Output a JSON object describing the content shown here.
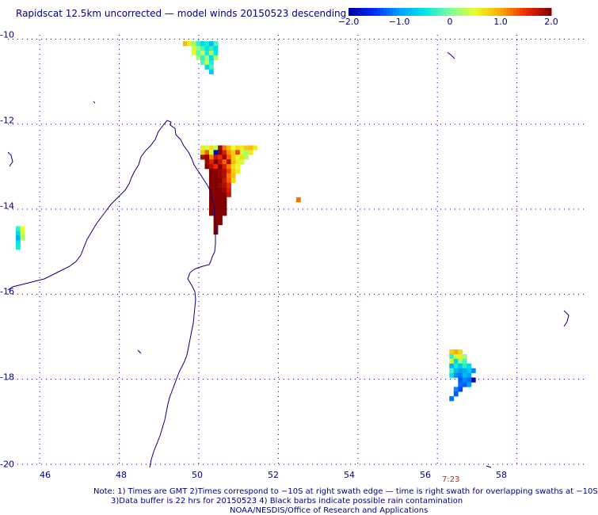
{
  "title": "Rapidscat 12.5km uncorrected — model winds 20150523 descending",
  "colorbar": {
    "ticks": [
      "−2.0",
      "−1.0",
      "0",
      "1.0",
      "2.0"
    ],
    "tick_values": [
      -2.0,
      -1.0,
      0,
      1.0,
      2.0
    ],
    "range": [
      -2.0,
      2.0
    ]
  },
  "axes": {
    "lat_labels": [
      "-10",
      "-12",
      "-14",
      "-16",
      "-18",
      "-20"
    ],
    "lat_values": [
      -10,
      -12,
      -14,
      -16,
      -18,
      -20
    ],
    "lon_labels": [
      "46",
      "48",
      "50",
      "52",
      "54",
      "56",
      "58"
    ],
    "lon_values": [
      46,
      48,
      50,
      52,
      54,
      56,
      58
    ],
    "lon_range": [
      45.2,
      59.7
    ],
    "lat_range": [
      -20,
      -9.9
    ]
  },
  "time_label": "7:23",
  "notes": {
    "line1": "Note: 1) Times are GMT 2)Times correspond to −10S at right swath edge — time is right swath for overlapping swaths at −10S",
    "line2": "3)Data buffer is 22 hrs for 20150523 4) Black barbs indicate possible rain contamination",
    "line3": "NOAA/NESDIS/Office of Research and Applications"
  },
  "colors": {
    "text": "#000080",
    "coastline": "#000080",
    "grid": "#000080",
    "time_label": "#cc2222"
  },
  "cell_size_deg": 0.11,
  "data_cells": [
    {
      "lon": 49.6,
      "lat": -10.05,
      "v": 0.9
    },
    {
      "lon": 49.71,
      "lat": -10.05,
      "v": 0.6
    },
    {
      "lon": 49.82,
      "lat": -10.05,
      "v": 0.2
    },
    {
      "lon": 49.93,
      "lat": -10.05,
      "v": -0.3
    },
    {
      "lon": 50.04,
      "lat": -10.05,
      "v": -0.6
    },
    {
      "lon": 50.15,
      "lat": -10.05,
      "v": -0.4
    },
    {
      "lon": 50.26,
      "lat": -10.05,
      "v": -0.8
    },
    {
      "lon": 50.37,
      "lat": -10.05,
      "v": -0.2
    },
    {
      "lon": 49.82,
      "lat": -10.16,
      "v": 0.4
    },
    {
      "lon": 49.93,
      "lat": -10.16,
      "v": 0.1
    },
    {
      "lon": 50.04,
      "lat": -10.16,
      "v": -0.2
    },
    {
      "lon": 50.15,
      "lat": -10.16,
      "v": -0.5
    },
    {
      "lon": 50.26,
      "lat": -10.16,
      "v": -0.3
    },
    {
      "lon": 50.37,
      "lat": -10.16,
      "v": -0.6
    },
    {
      "lon": 49.82,
      "lat": -10.27,
      "v": 0.5
    },
    {
      "lon": 49.93,
      "lat": -10.27,
      "v": -0.1
    },
    {
      "lon": 50.04,
      "lat": -10.27,
      "v": 0.3
    },
    {
      "lon": 50.15,
      "lat": -10.27,
      "v": -0.4
    },
    {
      "lon": 50.26,
      "lat": -10.27,
      "v": 0.2
    },
    {
      "lon": 50.37,
      "lat": -10.27,
      "v": -0.5
    },
    {
      "lon": 49.93,
      "lat": -10.38,
      "v": 0.2
    },
    {
      "lon": 50.04,
      "lat": -10.38,
      "v": -0.3
    },
    {
      "lon": 50.15,
      "lat": -10.38,
      "v": 0.1
    },
    {
      "lon": 50.26,
      "lat": -10.38,
      "v": -0.6
    },
    {
      "lon": 50.37,
      "lat": -10.38,
      "v": 0.3
    },
    {
      "lon": 50.04,
      "lat": -10.49,
      "v": -0.2
    },
    {
      "lon": 50.15,
      "lat": -10.49,
      "v": 0.4
    },
    {
      "lon": 50.26,
      "lat": -10.49,
      "v": -0.4
    },
    {
      "lon": 50.15,
      "lat": -10.6,
      "v": -0.6
    },
    {
      "lon": 50.26,
      "lat": -10.6,
      "v": -0.2
    },
    {
      "lon": 50.26,
      "lat": -10.71,
      "v": -0.7
    },
    {
      "lon": 50.04,
      "lat": -12.5,
      "v": 0.6
    },
    {
      "lon": 50.15,
      "lat": -12.5,
      "v": 0.4
    },
    {
      "lon": 50.26,
      "lat": -12.5,
      "v": 0.7
    },
    {
      "lon": 50.37,
      "lat": -12.5,
      "v": 0.3
    },
    {
      "lon": 50.48,
      "lat": -12.5,
      "v": 1.9
    },
    {
      "lon": 50.59,
      "lat": -12.5,
      "v": 1.2
    },
    {
      "lon": 50.7,
      "lat": -12.5,
      "v": 0.9
    },
    {
      "lon": 50.81,
      "lat": -12.5,
      "v": 0.5
    },
    {
      "lon": 50.92,
      "lat": -12.5,
      "v": 0.7
    },
    {
      "lon": 51.03,
      "lat": -12.5,
      "v": 0.6
    },
    {
      "lon": 51.14,
      "lat": -12.5,
      "v": 0.8
    },
    {
      "lon": 51.25,
      "lat": -12.5,
      "v": 0.9
    },
    {
      "lon": 51.36,
      "lat": -12.5,
      "v": 0.6
    },
    {
      "lon": 50.04,
      "lat": -12.61,
      "v": 0.8
    },
    {
      "lon": 50.15,
      "lat": -12.61,
      "v": 1.3
    },
    {
      "lon": 50.26,
      "lat": -12.61,
      "v": 0.5
    },
    {
      "lon": 50.37,
      "lat": -12.61,
      "v": -1.9
    },
    {
      "lon": 50.48,
      "lat": -12.61,
      "v": 2.0
    },
    {
      "lon": 50.59,
      "lat": -12.61,
      "v": 1.6
    },
    {
      "lon": 50.7,
      "lat": -12.61,
      "v": 1.1
    },
    {
      "lon": 50.81,
      "lat": -12.61,
      "v": 0.8
    },
    {
      "lon": 50.92,
      "lat": -12.61,
      "v": 1.4
    },
    {
      "lon": 51.03,
      "lat": -12.61,
      "v": 0.4
    },
    {
      "lon": 51.14,
      "lat": -12.61,
      "v": 0.2
    },
    {
      "lon": 51.25,
      "lat": -12.61,
      "v": 0.6
    },
    {
      "lon": 50.04,
      "lat": -12.72,
      "v": 1.8
    },
    {
      "lon": 50.15,
      "lat": -12.72,
      "v": 2.0
    },
    {
      "lon": 50.26,
      "lat": -12.72,
      "v": 1.2
    },
    {
      "lon": 50.37,
      "lat": -12.72,
      "v": 1.7
    },
    {
      "lon": 50.48,
      "lat": -12.72,
      "v": 1.5
    },
    {
      "lon": 50.59,
      "lat": -12.72,
      "v": 1.9
    },
    {
      "lon": 50.7,
      "lat": -12.72,
      "v": 1.3
    },
    {
      "lon": 50.81,
      "lat": -12.72,
      "v": 0.8
    },
    {
      "lon": 50.92,
      "lat": -12.72,
      "v": 0.5
    },
    {
      "lon": 51.03,
      "lat": -12.72,
      "v": 0.7
    },
    {
      "lon": 51.14,
      "lat": -12.72,
      "v": 0.3
    },
    {
      "lon": 50.15,
      "lat": -12.83,
      "v": 1.9
    },
    {
      "lon": 50.26,
      "lat": -12.83,
      "v": 1.6
    },
    {
      "lon": 50.37,
      "lat": -12.83,
      "v": 2.0
    },
    {
      "lon": 50.48,
      "lat": -12.83,
      "v": 1.7
    },
    {
      "lon": 50.59,
      "lat": -12.83,
      "v": 1.3
    },
    {
      "lon": 50.7,
      "lat": -12.83,
      "v": 1.8
    },
    {
      "lon": 50.81,
      "lat": -12.83,
      "v": 0.9
    },
    {
      "lon": 50.92,
      "lat": -12.83,
      "v": 0.6
    },
    {
      "lon": 51.03,
      "lat": -12.83,
      "v": 0.4
    },
    {
      "lon": 50.15,
      "lat": -12.94,
      "v": 2.0
    },
    {
      "lon": 50.26,
      "lat": -12.94,
      "v": 1.8
    },
    {
      "lon": 50.37,
      "lat": -12.94,
      "v": 1.5
    },
    {
      "lon": 50.48,
      "lat": -12.94,
      "v": 2.0
    },
    {
      "lon": 50.59,
      "lat": -12.94,
      "v": 1.6
    },
    {
      "lon": 50.7,
      "lat": -12.94,
      "v": 1.2
    },
    {
      "lon": 50.81,
      "lat": -12.94,
      "v": 0.7
    },
    {
      "lon": 50.92,
      "lat": -12.94,
      "v": 0.5
    },
    {
      "lon": 50.26,
      "lat": -13.05,
      "v": 2.0
    },
    {
      "lon": 50.37,
      "lat": -13.05,
      "v": 2.0
    },
    {
      "lon": 50.48,
      "lat": -13.05,
      "v": 1.9
    },
    {
      "lon": 50.59,
      "lat": -13.05,
      "v": 1.8
    },
    {
      "lon": 50.7,
      "lat": -13.05,
      "v": 1.4
    },
    {
      "lon": 50.81,
      "lat": -13.05,
      "v": 0.8
    },
    {
      "lon": 50.92,
      "lat": -13.05,
      "v": 0.6
    },
    {
      "lon": 50.26,
      "lat": -13.16,
      "v": 2.0
    },
    {
      "lon": 50.37,
      "lat": -13.16,
      "v": 2.0
    },
    {
      "lon": 50.48,
      "lat": -13.16,
      "v": 1.9
    },
    {
      "lon": 50.59,
      "lat": -13.16,
      "v": 1.8
    },
    {
      "lon": 50.7,
      "lat": -13.16,
      "v": 1.2
    },
    {
      "lon": 50.81,
      "lat": -13.16,
      "v": 0.9
    },
    {
      "lon": 50.26,
      "lat": -13.27,
      "v": 2.0
    },
    {
      "lon": 50.37,
      "lat": -13.27,
      "v": 2.0
    },
    {
      "lon": 50.48,
      "lat": -13.27,
      "v": 2.0
    },
    {
      "lon": 50.59,
      "lat": -13.27,
      "v": 1.7
    },
    {
      "lon": 50.7,
      "lat": -13.27,
      "v": 1.3
    },
    {
      "lon": 50.81,
      "lat": -13.27,
      "v": 0.7
    },
    {
      "lon": 50.26,
      "lat": -13.38,
      "v": 2.0
    },
    {
      "lon": 50.37,
      "lat": -13.38,
      "v": 2.0
    },
    {
      "lon": 50.48,
      "lat": -13.38,
      "v": 1.9
    },
    {
      "lon": 50.59,
      "lat": -13.38,
      "v": 1.8
    },
    {
      "lon": 50.7,
      "lat": -13.38,
      "v": 1.5
    },
    {
      "lon": 50.26,
      "lat": -13.49,
      "v": 2.0
    },
    {
      "lon": 50.37,
      "lat": -13.49,
      "v": 2.0
    },
    {
      "lon": 50.48,
      "lat": -13.49,
      "v": 2.0
    },
    {
      "lon": 50.59,
      "lat": -13.49,
      "v": 1.9
    },
    {
      "lon": 50.7,
      "lat": -13.49,
      "v": 1.6
    },
    {
      "lon": 50.26,
      "lat": -13.6,
      "v": 2.0
    },
    {
      "lon": 50.37,
      "lat": -13.6,
      "v": 2.0
    },
    {
      "lon": 50.48,
      "lat": -13.6,
      "v": 2.0
    },
    {
      "lon": 50.59,
      "lat": -13.6,
      "v": 2.0
    },
    {
      "lon": 50.7,
      "lat": -13.6,
      "v": 1.7
    },
    {
      "lon": 50.26,
      "lat": -13.71,
      "v": 2.0
    },
    {
      "lon": 50.37,
      "lat": -13.71,
      "v": 2.0
    },
    {
      "lon": 50.48,
      "lat": -13.71,
      "v": 2.0
    },
    {
      "lon": 50.59,
      "lat": -13.71,
      "v": 2.0
    },
    {
      "lon": 50.26,
      "lat": -13.82,
      "v": 2.0
    },
    {
      "lon": 50.37,
      "lat": -13.82,
      "v": 2.0
    },
    {
      "lon": 50.48,
      "lat": -13.82,
      "v": 2.0
    },
    {
      "lon": 50.59,
      "lat": -13.82,
      "v": 2.0
    },
    {
      "lon": 50.26,
      "lat": -13.93,
      "v": 2.0
    },
    {
      "lon": 50.37,
      "lat": -13.93,
      "v": 2.0
    },
    {
      "lon": 50.48,
      "lat": -13.93,
      "v": 2.0
    },
    {
      "lon": 50.59,
      "lat": -13.93,
      "v": 2.0
    },
    {
      "lon": 50.26,
      "lat": -14.04,
      "v": 2.0
    },
    {
      "lon": 50.37,
      "lat": -14.04,
      "v": 2.0
    },
    {
      "lon": 50.48,
      "lat": -14.04,
      "v": 2.0
    },
    {
      "lon": 50.59,
      "lat": -14.04,
      "v": 2.0
    },
    {
      "lon": 50.37,
      "lat": -14.15,
      "v": 2.0
    },
    {
      "lon": 50.48,
      "lat": -14.15,
      "v": 2.0
    },
    {
      "lon": 50.37,
      "lat": -14.26,
      "v": 2.0
    },
    {
      "lon": 50.48,
      "lat": -14.26,
      "v": 2.0
    },
    {
      "lon": 50.37,
      "lat": -14.37,
      "v": 2.0
    },
    {
      "lon": 50.37,
      "lat": -14.48,
      "v": 2.0
    },
    {
      "lon": 52.45,
      "lat": -13.72,
      "v": 1.2
    },
    {
      "lon": 45.4,
      "lat": -14.4,
      "v": -0.3
    },
    {
      "lon": 45.51,
      "lat": -14.4,
      "v": 0.5
    },
    {
      "lon": 45.4,
      "lat": -14.51,
      "v": -0.6
    },
    {
      "lon": 45.51,
      "lat": -14.51,
      "v": 0.4
    },
    {
      "lon": 45.4,
      "lat": -14.62,
      "v": -0.9
    },
    {
      "lon": 45.51,
      "lat": -14.62,
      "v": 0.2
    },
    {
      "lon": 45.4,
      "lat": -14.73,
      "v": -0.5
    },
    {
      "lon": 45.4,
      "lat": -14.84,
      "v": -0.4
    },
    {
      "lon": 56.3,
      "lat": -17.3,
      "v": 0.8
    },
    {
      "lon": 56.41,
      "lat": -17.3,
      "v": 1.0
    },
    {
      "lon": 56.52,
      "lat": -17.3,
      "v": 0.7
    },
    {
      "lon": 56.3,
      "lat": -17.41,
      "v": -0.3
    },
    {
      "lon": 56.41,
      "lat": -17.41,
      "v": 0.4
    },
    {
      "lon": 56.52,
      "lat": -17.41,
      "v": 0.6
    },
    {
      "lon": 56.63,
      "lat": -17.41,
      "v": 0.2
    },
    {
      "lon": 56.3,
      "lat": -17.52,
      "v": 0.5
    },
    {
      "lon": 56.41,
      "lat": -17.52,
      "v": -0.6
    },
    {
      "lon": 56.52,
      "lat": -17.52,
      "v": 0.1
    },
    {
      "lon": 56.63,
      "lat": -17.52,
      "v": -0.2
    },
    {
      "lon": 56.3,
      "lat": -17.63,
      "v": -0.9
    },
    {
      "lon": 56.41,
      "lat": -17.63,
      "v": -0.4
    },
    {
      "lon": 56.52,
      "lat": -17.63,
      "v": -0.7
    },
    {
      "lon": 56.63,
      "lat": -17.63,
      "v": -0.3
    },
    {
      "lon": 56.74,
      "lat": -17.63,
      "v": -0.6
    },
    {
      "lon": 56.3,
      "lat": -17.74,
      "v": -0.2
    },
    {
      "lon": 56.41,
      "lat": -17.74,
      "v": -0.8
    },
    {
      "lon": 56.52,
      "lat": -17.74,
      "v": -1.0
    },
    {
      "lon": 56.63,
      "lat": -17.74,
      "v": -0.9
    },
    {
      "lon": 56.74,
      "lat": -17.74,
      "v": -0.7
    },
    {
      "lon": 56.85,
      "lat": -17.74,
      "v": -1.1
    },
    {
      "lon": 56.3,
      "lat": -17.85,
      "v": -0.5
    },
    {
      "lon": 56.41,
      "lat": -17.85,
      "v": -1.1
    },
    {
      "lon": 56.52,
      "lat": -17.85,
      "v": -1.2
    },
    {
      "lon": 56.63,
      "lat": -17.85,
      "v": -0.8
    },
    {
      "lon": 56.74,
      "lat": -17.85,
      "v": -1.0
    },
    {
      "lon": 56.52,
      "lat": -17.96,
      "v": -1.3
    },
    {
      "lon": 56.63,
      "lat": -17.96,
      "v": -1.1
    },
    {
      "lon": 56.74,
      "lat": -17.96,
      "v": -1.2
    },
    {
      "lon": 56.85,
      "lat": -17.96,
      "v": -1.9
    },
    {
      "lon": 56.52,
      "lat": -18.07,
      "v": -1.2
    },
    {
      "lon": 56.63,
      "lat": -18.07,
      "v": -1.3
    },
    {
      "lon": 56.74,
      "lat": -18.07,
      "v": -1.0
    },
    {
      "lon": 56.41,
      "lat": -18.18,
      "v": -1.1
    },
    {
      "lon": 56.52,
      "lat": -18.18,
      "v": -1.4
    },
    {
      "lon": 56.41,
      "lat": -18.29,
      "v": -1.3
    },
    {
      "lon": 56.3,
      "lat": -18.4,
      "v": -1.2
    }
  ]
}
